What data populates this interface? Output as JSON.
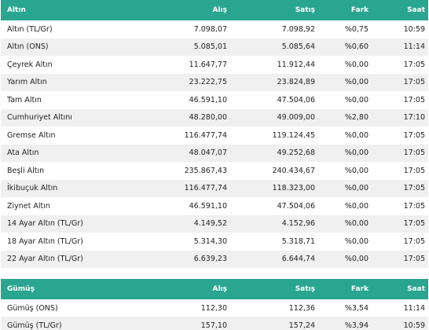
{
  "gold": {
    "headers": {
      "name": "Altın",
      "buy": "Alış",
      "sell": "Satış",
      "diff": "Fark",
      "time": "Saat"
    },
    "rows": [
      {
        "name": "Altın (TL/Gr)",
        "buy": "7.098,07",
        "sell": "7.098,92",
        "diff": "%0,75",
        "time": "10:59"
      },
      {
        "name": "Altın (ONS)",
        "buy": "5.085,01",
        "sell": "5.085,64",
        "diff": "%0,60",
        "time": "11:14"
      },
      {
        "name": "Çeyrek Altın",
        "buy": "11.647,77",
        "sell": "11.912,44",
        "diff": "%0,00",
        "time": "17:05"
      },
      {
        "name": "Yarım Altın",
        "buy": "23.222,75",
        "sell": "23.824,89",
        "diff": "%0,00",
        "time": "17:05"
      },
      {
        "name": "Tam Altın",
        "buy": "46.591,10",
        "sell": "47.504,06",
        "diff": "%0,00",
        "time": "17:05"
      },
      {
        "name": "Cumhuriyet Altını",
        "buy": "48.280,00",
        "sell": "49.009,00",
        "diff": "%2,80",
        "time": "17:10"
      },
      {
        "name": "Gremse Altın",
        "buy": "116.477,74",
        "sell": "119.124,45",
        "diff": "%0,00",
        "time": "17:05"
      },
      {
        "name": "Ata Altın",
        "buy": "48.047,07",
        "sell": "49.252,68",
        "diff": "%0,00",
        "time": "17:05"
      },
      {
        "name": "Beşli Altın",
        "buy": "235.867,43",
        "sell": "240.434,67",
        "diff": "%0,00",
        "time": "17:05"
      },
      {
        "name": "İkibuçuk Altın",
        "buy": "116.477,74",
        "sell": "118.323,00",
        "diff": "%0,00",
        "time": "17:05"
      },
      {
        "name": "Ziynet Altın",
        "buy": "46.591,10",
        "sell": "47.504,06",
        "diff": "%0,00",
        "time": "17:05"
      },
      {
        "name": "14 Ayar Altın (TL/Gr)",
        "buy": "4.149,52",
        "sell": "4.152,96",
        "diff": "%0,00",
        "time": "17:05"
      },
      {
        "name": "18 Ayar Altın (TL/Gr)",
        "buy": "5.314,30",
        "sell": "5.318,71",
        "diff": "%0,00",
        "time": "17:05"
      },
      {
        "name": "22 Ayar Altın (TL/Gr)",
        "buy": "6.639,23",
        "sell": "6.644,74",
        "diff": "%0,00",
        "time": "17:05"
      }
    ]
  },
  "silver": {
    "headers": {
      "name": "Gümüş",
      "buy": "Alış",
      "sell": "Satış",
      "diff": "Fark",
      "time": "Saat"
    },
    "rows": [
      {
        "name": "Gümüş (ONS)",
        "buy": "112,30",
        "sell": "112,36",
        "diff": "%3,54",
        "time": "11:14"
      },
      {
        "name": "Gümüş (TL/Gr)",
        "buy": "157,10",
        "sell": "157,24",
        "diff": "%3,94",
        "time": "10:59"
      }
    ]
  },
  "colors": {
    "header_bg": "#2aa590",
    "header_text": "#ffffff",
    "row_alt_bg": "#f0f0f0"
  }
}
